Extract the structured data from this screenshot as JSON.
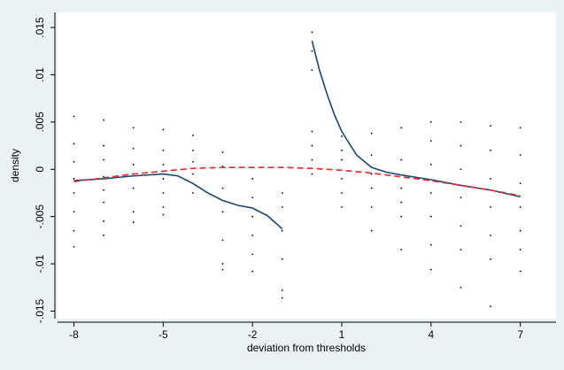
{
  "chart_data": {
    "type": "scatter",
    "xlabel": "deviation from thresholds",
    "ylabel": "density",
    "xlim": [
      -8.55,
      8.2
    ],
    "ylim": [
      -0.0158,
      0.0166
    ],
    "xticks": [
      -8,
      -5,
      -2,
      1,
      4,
      7
    ],
    "yticks": [
      {
        "value": -0.015,
        "label": "-.015"
      },
      {
        "value": -0.01,
        "label": "-.01"
      },
      {
        "value": -0.005,
        "label": "-.005"
      },
      0,
      {
        "value": 0.005,
        "label": ".005"
      },
      {
        "value": 0.01,
        "label": ".01"
      },
      {
        "value": 0.015,
        "label": ".015"
      }
    ],
    "grid": false,
    "series": [
      {
        "type": "scatter",
        "color": "#000000",
        "x": [
          -8,
          -8,
          -8,
          -8,
          -8,
          -8,
          -8,
          -8,
          -7,
          -7,
          -7,
          -7,
          -7,
          -7,
          -7,
          -7,
          -6,
          -6,
          -6,
          -6,
          -6,
          -6,
          -6,
          -5,
          -5,
          -5,
          -5,
          -5,
          -5,
          -5,
          -4,
          -4,
          -4,
          -4,
          -4,
          -4,
          -3,
          -3,
          -3,
          -3,
          -3,
          -3,
          -3,
          -2,
          -2,
          -2,
          -2,
          -2,
          -2,
          -2,
          -1,
          -1,
          -1,
          -1,
          -1,
          -1,
          -1,
          0,
          0,
          0,
          0,
          0,
          0,
          0,
          1,
          1,
          1,
          1,
          1,
          1,
          2,
          2,
          2,
          2,
          2,
          2,
          3,
          3,
          3,
          3,
          3,
          3,
          4,
          4,
          4,
          4,
          4,
          4,
          4,
          5,
          5,
          5,
          5,
          5,
          5,
          5,
          6,
          6,
          6,
          6,
          6,
          6,
          6,
          7,
          7,
          7,
          7,
          7,
          7,
          7
        ],
        "values": [
          0.0056,
          0.0027,
          0.0008,
          -0.001,
          -0.0025,
          -0.0045,
          -0.0065,
          -0.0082,
          0.0052,
          0.0025,
          0.001,
          -0.0008,
          -0.0022,
          -0.0035,
          -0.0055,
          -0.007,
          0.0044,
          0.0022,
          0.0005,
          -0.0005,
          -0.002,
          -0.0045,
          -0.0056,
          0.0042,
          0.002,
          0.0005,
          -0.001,
          -0.0025,
          -0.004,
          -0.0048,
          0.0036,
          0.002,
          0.0008,
          -0.0005,
          -0.0015,
          -0.0025,
          0.0018,
          0.0003,
          -0.002,
          -0.0045,
          -0.0075,
          -0.01,
          -0.0106,
          0.0002,
          -0.001,
          -0.003,
          -0.005,
          -0.007,
          -0.009,
          -0.0108,
          0.0002,
          -0.0025,
          -0.004,
          -0.0065,
          -0.0095,
          -0.0128,
          -0.0136,
          0.0145,
          0.0125,
          0.0105,
          0.004,
          0.0025,
          0.001,
          -0.0005,
          0.0035,
          0.002,
          0.001,
          -0.001,
          -0.0025,
          -0.004,
          0.0038,
          0.0015,
          -0.0005,
          -0.002,
          -0.004,
          -0.0065,
          0.0044,
          0.001,
          -0.002,
          -0.0035,
          -0.005,
          -0.0085,
          0.005,
          0.003,
          0.0005,
          -0.0025,
          -0.005,
          -0.008,
          -0.0106,
          0.005,
          0.0025,
          0,
          -0.003,
          -0.006,
          -0.0085,
          -0.0125,
          0.0046,
          0.002,
          -0.001,
          -0.004,
          -0.007,
          -0.0095,
          -0.0145,
          0.0044,
          0.0015,
          -0.0015,
          -0.004,
          -0.0065,
          -0.0085,
          -0.0108
        ]
      },
      {
        "type": "line",
        "color": "#1a476f",
        "dash": false,
        "x": [
          -8,
          -7,
          -6,
          -5,
          -4.5,
          -4,
          -3.5,
          -3,
          -2.5,
          -2,
          -1.5,
          -1,
          -0.5,
          0,
          0.25,
          0.5,
          0.75,
          1,
          1.5,
          2,
          2.5,
          3,
          4,
          5,
          6,
          7
        ],
        "values": [
          -0.0012,
          -0.001,
          -0.0007,
          -0.0005,
          -0.0007,
          -0.0015,
          -0.0025,
          -0.0033,
          -0.0038,
          -0.0041,
          -0.0049,
          -0.0063,
          null,
          0.0136,
          0.0105,
          0.008,
          0.0058,
          0.004,
          0.0015,
          0.0002,
          -0.0003,
          -0.0006,
          -0.0011,
          -0.0017,
          -0.0022,
          -0.0029
        ]
      },
      {
        "type": "line",
        "color": "#e8262b",
        "dash": true,
        "x": [
          -8,
          -7,
          -6,
          -5,
          -4,
          -3,
          -2,
          -1,
          0,
          1,
          2,
          3,
          4,
          5,
          6,
          7
        ],
        "values": [
          -0.0013,
          -0.0009,
          -0.0005,
          -0.0002,
          0.0001,
          0.0002,
          0.0002,
          0.0002,
          0.0001,
          -0.0001,
          -0.0004,
          -0.0008,
          -0.0012,
          -0.0017,
          -0.0022,
          -0.0028
        ]
      }
    ]
  }
}
